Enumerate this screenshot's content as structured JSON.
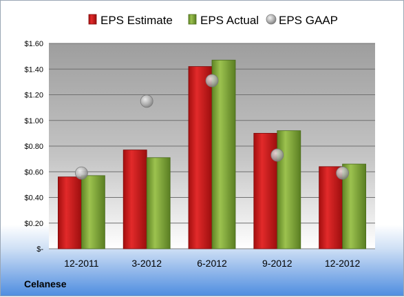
{
  "chart_data": {
    "type": "bar",
    "categories": [
      "12-2011",
      "3-2012",
      "6-2012",
      "9-2012",
      "12-2012"
    ],
    "series": [
      {
        "name": "EPS Estimate",
        "kind": "bar",
        "color": "#d01f1f",
        "values": [
          0.56,
          0.77,
          1.42,
          0.9,
          0.64
        ]
      },
      {
        "name": "EPS Actual",
        "kind": "bar",
        "color": "#7fa73a",
        "values": [
          0.57,
          0.71,
          1.47,
          0.92,
          0.66
        ]
      },
      {
        "name": "EPS GAAP",
        "kind": "marker",
        "color": "#b4b4b4",
        "values": [
          0.59,
          1.15,
          1.31,
          0.73,
          0.59
        ]
      }
    ],
    "ylim": [
      0,
      1.6
    ],
    "yticks": [
      0,
      0.2,
      0.4,
      0.6,
      0.8,
      1.0,
      1.2,
      1.4,
      1.6
    ],
    "ytick_labels": [
      "$-",
      "$0.20",
      "$0.40",
      "$0.60",
      "$0.80",
      "$1.00",
      "$1.20",
      "$1.40",
      "$1.60"
    ],
    "grid": true,
    "legend_position": "top",
    "company": "Celanese"
  }
}
